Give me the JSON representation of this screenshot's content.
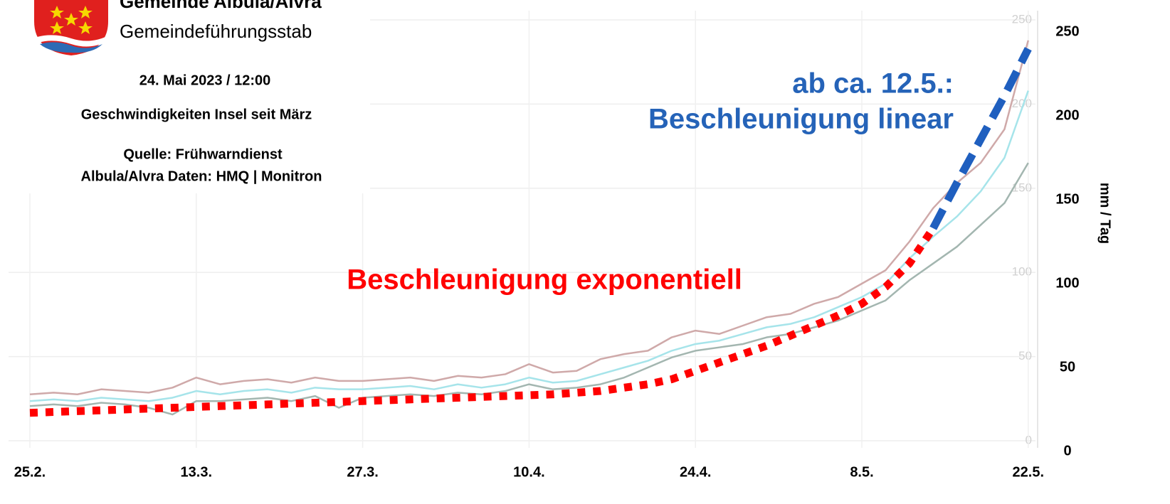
{
  "header": {
    "title": "Gemeinde Albula/Alvra",
    "subtitle": "Gemeindeführungsstab",
    "date": "24. Mai 2023 / 12:00",
    "description": "Geschwindigkeiten Insel seit März",
    "source": [
      "Quelle: Frühwarndienst",
      "Albula/Alvra Daten: HMQ | Monitron"
    ]
  },
  "chart_data": {
    "type": "line",
    "annotations": [
      "Beschleunigung exponentiell",
      "ab ca. 12.5.:",
      "Beschleunigung linear"
    ],
    "y_label": "mm / Tag",
    "categories": [
      "25.2.",
      null,
      null,
      null,
      null,
      null,
      null,
      "13.3.",
      null,
      null,
      null,
      null,
      null,
      null,
      "27.3.",
      null,
      null,
      null,
      null,
      null,
      null,
      "10.4.",
      null,
      null,
      null,
      null,
      null,
      null,
      "24.4.",
      null,
      null,
      null,
      null,
      null,
      null,
      "8.5.",
      null,
      null,
      null,
      null,
      null,
      null,
      "22.5."
    ],
    "series": [
      {
        "color": "#cfa9a9",
        "style": "solid",
        "values": [
          34,
          35,
          34,
          37,
          36,
          35,
          38,
          44,
          40,
          42,
          43,
          41,
          44,
          42,
          42,
          43,
          44,
          42,
          45,
          44,
          46,
          52,
          47,
          48,
          55,
          58,
          60,
          68,
          72,
          70,
          75,
          80,
          82,
          88,
          92,
          100,
          108,
          125,
          145,
          160,
          172,
          192,
          245
        ]
      },
      {
        "color": "#a6e4ea",
        "style": "solid",
        "values": [
          30,
          31,
          30,
          32,
          31,
          30,
          32,
          36,
          34,
          36,
          37,
          35,
          38,
          37,
          37,
          38,
          39,
          37,
          40,
          38,
          40,
          44,
          41,
          42,
          46,
          50,
          54,
          60,
          64,
          66,
          70,
          74,
          76,
          80,
          86,
          92,
          100,
          115,
          128,
          140,
          155,
          175,
          215
        ]
      },
      {
        "color": "#a3b6b0",
        "style": "solid",
        "values": [
          27,
          28,
          27,
          29,
          28,
          26,
          22,
          30,
          30,
          31,
          32,
          30,
          33,
          26,
          32,
          33,
          34,
          33,
          35,
          34,
          36,
          40,
          37,
          38,
          40,
          44,
          50,
          56,
          60,
          62,
          64,
          68,
          70,
          74,
          78,
          84,
          90,
          102,
          112,
          122,
          135,
          148,
          172
        ]
      },
      {
        "color": "#ff0000",
        "style": "dotted",
        "values": [
          23,
          23.5,
          24,
          24.5,
          25,
          25.5,
          26,
          26.5,
          27,
          27.5,
          28,
          28.5,
          29,
          29.5,
          30,
          30.5,
          31,
          31.5,
          32,
          32.5,
          33,
          33.5,
          34,
          35,
          36,
          38,
          40,
          43,
          48,
          53,
          58,
          63,
          69,
          75,
          81,
          88,
          98,
          112,
          133,
          null,
          null,
          null,
          null
        ]
      },
      {
        "color": "#1f5fbf",
        "style": "dashed",
        "values": [
          null,
          null,
          null,
          null,
          null,
          null,
          null,
          null,
          null,
          null,
          null,
          null,
          null,
          null,
          null,
          null,
          null,
          null,
          null,
          null,
          null,
          null,
          null,
          null,
          null,
          null,
          null,
          null,
          null,
          null,
          null,
          null,
          null,
          null,
          null,
          null,
          null,
          null,
          133,
          160,
          186,
          212,
          240
        ]
      }
    ],
    "ylim": [
      0,
      250
    ],
    "yticks": [
      0,
      50,
      100,
      150,
      200,
      250
    ],
    "y2lim": [
      0,
      250
    ],
    "y2ticks": [
      0,
      50,
      100,
      150,
      200,
      250
    ],
    "grid": true
  }
}
